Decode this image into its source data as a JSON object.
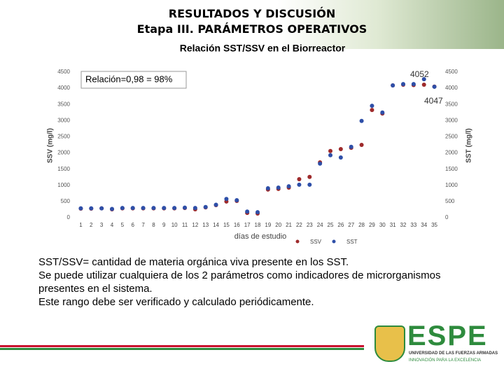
{
  "slide": {
    "title": "RESULTADOS Y DISCUSIÓN",
    "subtitle": "Etapa III. PARÁMETROS OPERATIVOS"
  },
  "chart_data": {
    "type": "scatter",
    "title": "Relación SST/SSV en el Biorreactor",
    "annotation": "Relación=0,98 = 98%",
    "point_labels": [
      "4052",
      "4047"
    ],
    "xlabel": "días de estudio",
    "ylabel": "SSV (mg/l)",
    "y2label": "SST (mg/l)",
    "x": [
      1,
      2,
      3,
      4,
      5,
      6,
      7,
      8,
      9,
      10,
      11,
      12,
      13,
      14,
      15,
      16,
      17,
      18,
      19,
      20,
      21,
      22,
      23,
      24,
      25,
      26,
      27,
      28,
      29,
      30,
      31,
      32,
      33,
      34,
      35
    ],
    "xlim": [
      0.5,
      35.5
    ],
    "ylim": [
      0,
      4500
    ],
    "yticks": [
      0,
      500,
      1000,
      1500,
      2000,
      2500,
      3000,
      3500,
      4000,
      4500
    ],
    "y2lim": [
      0,
      4500
    ],
    "y2ticks": [
      0,
      500,
      1000,
      1500,
      2000,
      2500,
      3000,
      3500,
      4000,
      4500
    ],
    "series": [
      {
        "name": "SSV",
        "color": "#9e2a2b",
        "values": [
          280,
          280,
          290,
          260,
          290,
          290,
          290,
          290,
          290,
          290,
          300,
          260,
          320,
          390,
          500,
          520,
          150,
          130,
          870,
          890,
          930,
          1190,
          1260,
          1710,
          2060,
          2120,
          2160,
          2250,
          3330,
          3220,
          4090,
          4110,
          4100,
          4110,
          4052
        ]
      },
      {
        "name": "SST",
        "color": "#2e4fa8",
        "axis": "y2",
        "values": [
          290,
          290,
          290,
          270,
          300,
          300,
          300,
          300,
          300,
          300,
          310,
          300,
          330,
          400,
          580,
          540,
          190,
          170,
          910,
          930,
          970,
          1020,
          1020,
          1670,
          1930,
          1860,
          2190,
          2990,
          3460,
          3250,
          4090,
          4130,
          4130,
          4280,
          4047
        ]
      }
    ]
  },
  "body": [
    "SST/SSV= cantidad de materia orgánica viva  presente en los SST.",
    "Se puede utilizar cualquiera de los 2 parámetros como indicadores de microrganismos presentes en el sistema.",
    "Este rango debe ser verificado y calculado periódicamente."
  ],
  "logo": {
    "name": "ESPE",
    "line1": "UNIVERSIDAD DE LAS FUERZAS ARMADAS",
    "line2": "INNOVACIÓN PARA LA EXCELENCIA"
  }
}
